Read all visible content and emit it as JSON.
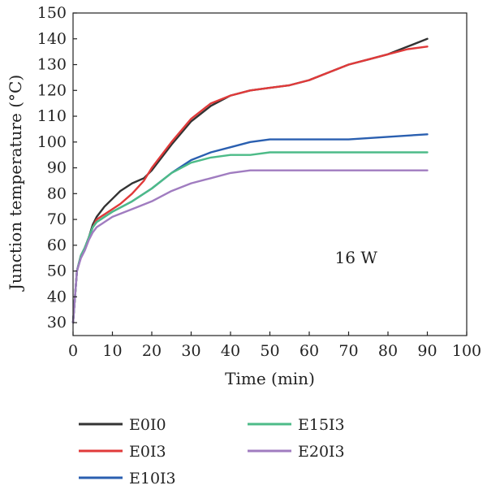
{
  "chart_data": {
    "type": "line",
    "xlabel": "Time (min)",
    "ylabel": "Junction temperature (°C)",
    "xlim": [
      0,
      100
    ],
    "ylim": [
      25,
      150
    ],
    "x_ticks": [
      0,
      10,
      20,
      30,
      40,
      50,
      60,
      70,
      80,
      90,
      100
    ],
    "y_ticks": [
      30,
      40,
      50,
      60,
      70,
      80,
      90,
      100,
      110,
      120,
      130,
      140,
      150
    ],
    "grid": false,
    "legend_position": "bottom",
    "annotation": "16 W",
    "series": [
      {
        "name": "E0I0",
        "color": "#333333",
        "x": [
          0,
          1,
          2,
          3,
          4,
          5,
          6,
          8,
          10,
          12,
          15,
          18,
          20,
          25,
          30,
          35,
          40,
          45,
          50,
          55,
          60,
          65,
          70,
          75,
          80,
          85,
          90
        ],
        "y": [
          30,
          50,
          56,
          59,
          63,
          68,
          71,
          75,
          78,
          81,
          84,
          86,
          89,
          99,
          108,
          114,
          118,
          120,
          121,
          122,
          124,
          127,
          130,
          132,
          134,
          137,
          140
        ]
      },
      {
        "name": "E0I3",
        "color": "#e03a3a",
        "x": [
          0,
          1,
          2,
          3,
          4,
          5,
          6,
          8,
          10,
          12,
          15,
          18,
          20,
          25,
          30,
          35,
          40,
          45,
          50,
          55,
          60,
          65,
          70,
          75,
          80,
          85,
          90
        ],
        "y": [
          30,
          50,
          56,
          59,
          63,
          67,
          70,
          72,
          74,
          76,
          80,
          85,
          90,
          100,
          109,
          115,
          118,
          120,
          121,
          122,
          124,
          127,
          130,
          132,
          134,
          136,
          137
        ]
      },
      {
        "name": "E10I3",
        "color": "#2a5fb0",
        "x": [
          0,
          1,
          2,
          3,
          4,
          5,
          6,
          8,
          10,
          15,
          20,
          25,
          30,
          35,
          40,
          45,
          50,
          55,
          60,
          70,
          80,
          90
        ],
        "y": [
          30,
          50,
          56,
          59,
          63,
          67,
          69,
          71,
          73,
          77,
          82,
          88,
          93,
          96,
          98,
          100,
          101,
          101,
          101,
          101,
          102,
          103
        ]
      },
      {
        "name": "E15I3",
        "color": "#4dbb88",
        "x": [
          0,
          1,
          2,
          3,
          4,
          5,
          6,
          8,
          10,
          15,
          20,
          25,
          30,
          35,
          40,
          45,
          50,
          55,
          60,
          70,
          80,
          90
        ],
        "y": [
          30,
          50,
          56,
          59,
          63,
          67,
          69,
          71,
          73,
          77,
          82,
          88,
          92,
          94,
          95,
          95,
          96,
          96,
          96,
          96,
          96,
          96
        ]
      },
      {
        "name": "E20I3",
        "color": "#a07cc0",
        "x": [
          0,
          1,
          2,
          3,
          4,
          5,
          6,
          8,
          10,
          15,
          20,
          25,
          30,
          35,
          40,
          45,
          50,
          55,
          60,
          70,
          80,
          90
        ],
        "y": [
          30,
          50,
          55,
          58,
          62,
          65,
          67,
          69,
          71,
          74,
          77,
          81,
          84,
          86,
          88,
          89,
          89,
          89,
          89,
          89,
          89,
          89
        ]
      }
    ]
  }
}
